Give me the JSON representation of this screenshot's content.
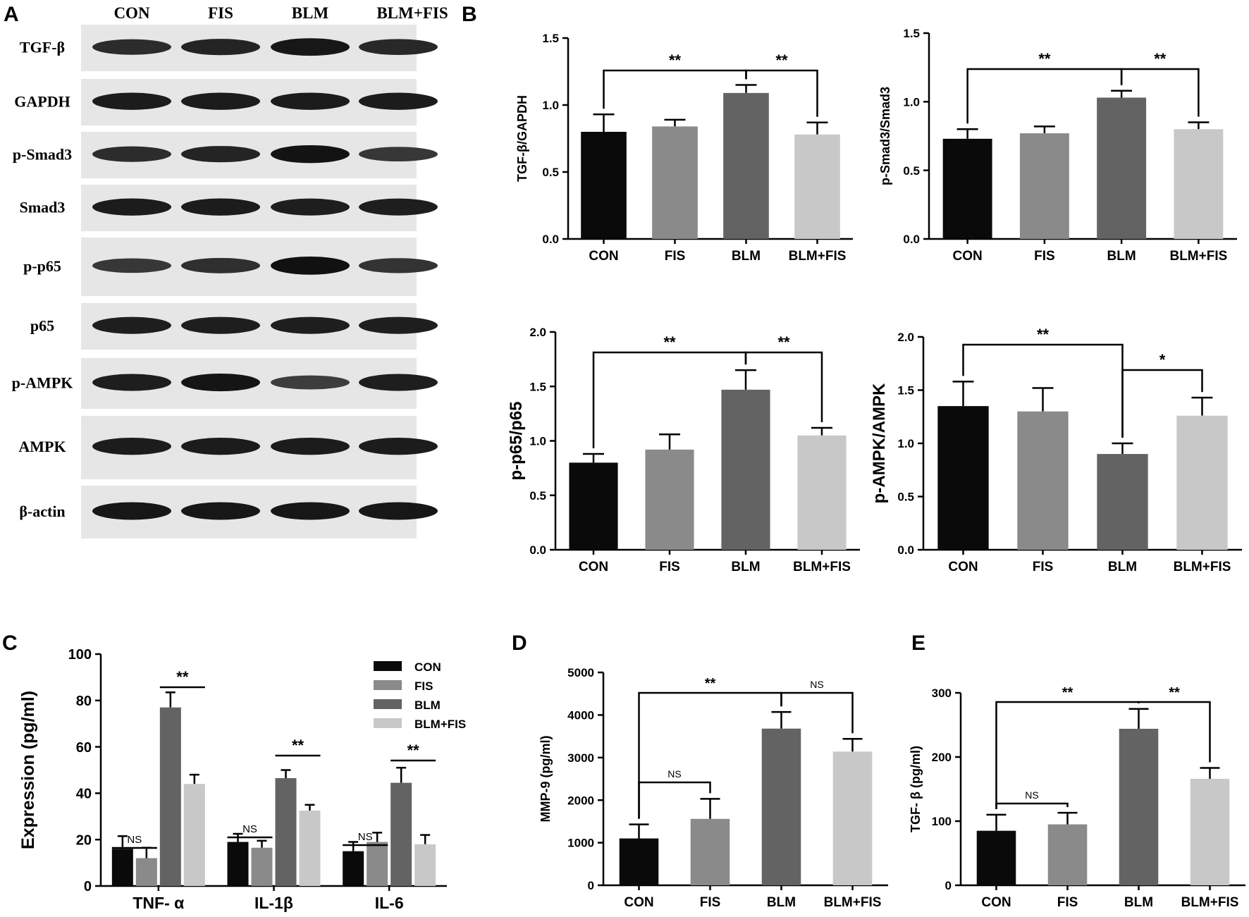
{
  "panel_letters": [
    "A",
    "B",
    "C",
    "D",
    "E"
  ],
  "blot": {
    "lanes": [
      "CON",
      "FIS",
      "BLM",
      "BLM+FIS"
    ],
    "rows": [
      {
        "label": "TGF-β",
        "intensity": [
          0.72,
          0.8,
          0.92,
          0.76
        ]
      },
      {
        "label": "GAPDH",
        "intensity": [
          0.88,
          0.88,
          0.88,
          0.88
        ]
      },
      {
        "label": "p-Smad3",
        "intensity": [
          0.72,
          0.8,
          0.96,
          0.62
        ]
      },
      {
        "label": "Smad3",
        "intensity": [
          0.88,
          0.88,
          0.86,
          0.86
        ]
      },
      {
        "label": "p-p65",
        "intensity": [
          0.62,
          0.7,
          0.98,
          0.66
        ]
      },
      {
        "label": "p65",
        "intensity": [
          0.86,
          0.86,
          0.86,
          0.86
        ]
      },
      {
        "label": "p-AMPK",
        "intensity": [
          0.86,
          0.94,
          0.56,
          0.86
        ]
      },
      {
        "label": "AMPK",
        "intensity": [
          0.88,
          0.88,
          0.88,
          0.88
        ]
      },
      {
        "label": "β-actin",
        "intensity": [
          0.92,
          0.92,
          0.92,
          0.92
        ]
      }
    ]
  },
  "chart_data": [
    {
      "panel": "B",
      "type": "bar",
      "categories": [
        "CON",
        "FIS",
        "BLM",
        "BLM+FIS"
      ],
      "values": [
        0.8,
        0.84,
        1.09,
        0.78
      ],
      "errors": [
        0.13,
        0.05,
        0.06,
        0.09
      ],
      "ylabel": "TGF-β/GAPDH",
      "ylim": [
        0,
        1.5
      ],
      "yticks": [
        "0.0",
        "0.5",
        "1.0",
        "1.5"
      ],
      "significance": [
        {
          "from": 0,
          "to": 2,
          "label": "**"
        },
        {
          "from": 2,
          "to": 3,
          "label": "**"
        }
      ]
    },
    {
      "panel": "B",
      "type": "bar",
      "categories": [
        "CON",
        "FIS",
        "BLM",
        "BLM+FIS"
      ],
      "values": [
        0.73,
        0.77,
        1.03,
        0.8
      ],
      "errors": [
        0.07,
        0.05,
        0.05,
        0.05
      ],
      "ylabel": "p-Smad3/Smad3",
      "ylim": [
        0,
        1.5
      ],
      "yticks": [
        "0.0",
        "0.5",
        "1.0",
        "1.5"
      ],
      "significance": [
        {
          "from": 0,
          "to": 2,
          "label": "**"
        },
        {
          "from": 2,
          "to": 3,
          "label": "**"
        }
      ]
    },
    {
      "panel": "B",
      "type": "bar",
      "categories": [
        "CON",
        "FIS",
        "BLM",
        "BLM+FIS"
      ],
      "values": [
        0.8,
        0.92,
        1.47,
        1.05
      ],
      "errors": [
        0.08,
        0.14,
        0.18,
        0.07
      ],
      "ylabel": "p-p65/p65",
      "ylim": [
        0,
        2.0
      ],
      "yticks": [
        "0.0",
        "0.5",
        "1.0",
        "1.5",
        "2.0"
      ],
      "significance": [
        {
          "from": 0,
          "to": 2,
          "label": "**"
        },
        {
          "from": 2,
          "to": 3,
          "label": "**"
        }
      ]
    },
    {
      "panel": "B",
      "type": "bar",
      "categories": [
        "CON",
        "FIS",
        "BLM",
        "BLM+FIS"
      ],
      "values": [
        1.35,
        1.3,
        0.9,
        1.26
      ],
      "errors": [
        0.23,
        0.22,
        0.1,
        0.17
      ],
      "ylabel": "p-AMPK/AMPK",
      "ylim": [
        0,
        2.0
      ],
      "yticks": [
        "0.0",
        "0.5",
        "1.0",
        "1.5",
        "2.0"
      ],
      "significance": [
        {
          "from": 0,
          "to": 2,
          "label": "**"
        },
        {
          "from": 2,
          "to": 3,
          "label": "*"
        }
      ]
    },
    {
      "panel": "C",
      "type": "bar",
      "categories": [
        "TNF- α",
        "IL-1β",
        "IL-6"
      ],
      "series": [
        {
          "name": "CON",
          "values": [
            16,
            19,
            15
          ],
          "errors": [
            5.5,
            3.5,
            4
          ]
        },
        {
          "name": "FIS",
          "values": [
            12,
            16.5,
            19
          ],
          "errors": [
            4.5,
            3,
            4
          ]
        },
        {
          "name": "BLM",
          "values": [
            77,
            46.5,
            44.5
          ],
          "errors": [
            6.5,
            3.5,
            6.5
          ]
        },
        {
          "name": "BLM+FIS",
          "values": [
            44,
            32.5,
            18
          ],
          "errors": [
            4,
            2.5,
            4
          ]
        }
      ],
      "ylabel": "Expression (pg/ml)",
      "ylim": [
        0,
        100
      ],
      "yticks": [
        "0",
        "20",
        "40",
        "60",
        "80",
        "100"
      ],
      "legend": "top-right",
      "significance": [
        {
          "group": 0,
          "from": 0,
          "to": 1,
          "label": "NS"
        },
        {
          "group": 0,
          "from": 2,
          "to": 3,
          "label": "**"
        },
        {
          "group": 1,
          "from": 0,
          "to": 1,
          "label": "NS"
        },
        {
          "group": 1,
          "from": 2,
          "to": 3,
          "label": "**"
        },
        {
          "group": 2,
          "from": 0,
          "to": 1,
          "label": "NS"
        },
        {
          "group": 2,
          "from": 2,
          "to": 3,
          "label": "**"
        }
      ]
    },
    {
      "panel": "D",
      "type": "bar",
      "categories": [
        "CON",
        "FIS",
        "BLM",
        "BLM+FIS"
      ],
      "values": [
        1100,
        1560,
        3680,
        3140
      ],
      "errors": [
        330,
        470,
        390,
        300
      ],
      "ylabel": "MMP-9 (pg/ml)",
      "ylim": [
        0,
        5000
      ],
      "yticks": [
        "0",
        "1000",
        "2000",
        "3000",
        "4000",
        "5000"
      ],
      "significance": [
        {
          "from": 0,
          "to": 1,
          "label": "NS"
        },
        {
          "from": 0,
          "to": 2,
          "label": "**"
        },
        {
          "from": 2,
          "to": 3,
          "label": "NS"
        }
      ]
    },
    {
      "panel": "E",
      "type": "bar",
      "categories": [
        "CON",
        "FIS",
        "BLM",
        "BLM+FIS"
      ],
      "values": [
        85,
        95,
        244,
        166
      ],
      "errors": [
        25,
        18,
        31,
        17
      ],
      "ylabel": "TGF- β (pg/ml)",
      "ylim": [
        0,
        300
      ],
      "yticks": [
        "0",
        "100",
        "200",
        "300"
      ],
      "significance": [
        {
          "from": 0,
          "to": 1,
          "label": "NS"
        },
        {
          "from": 0,
          "to": 2,
          "label": "**"
        },
        {
          "from": 2,
          "to": 3,
          "label": "**"
        }
      ]
    }
  ],
  "colors": {
    "CON": "#0a0a0a",
    "FIS": "#8a8a8a",
    "BLM": "#636363",
    "BLM+FIS": "#c8c8c8"
  }
}
